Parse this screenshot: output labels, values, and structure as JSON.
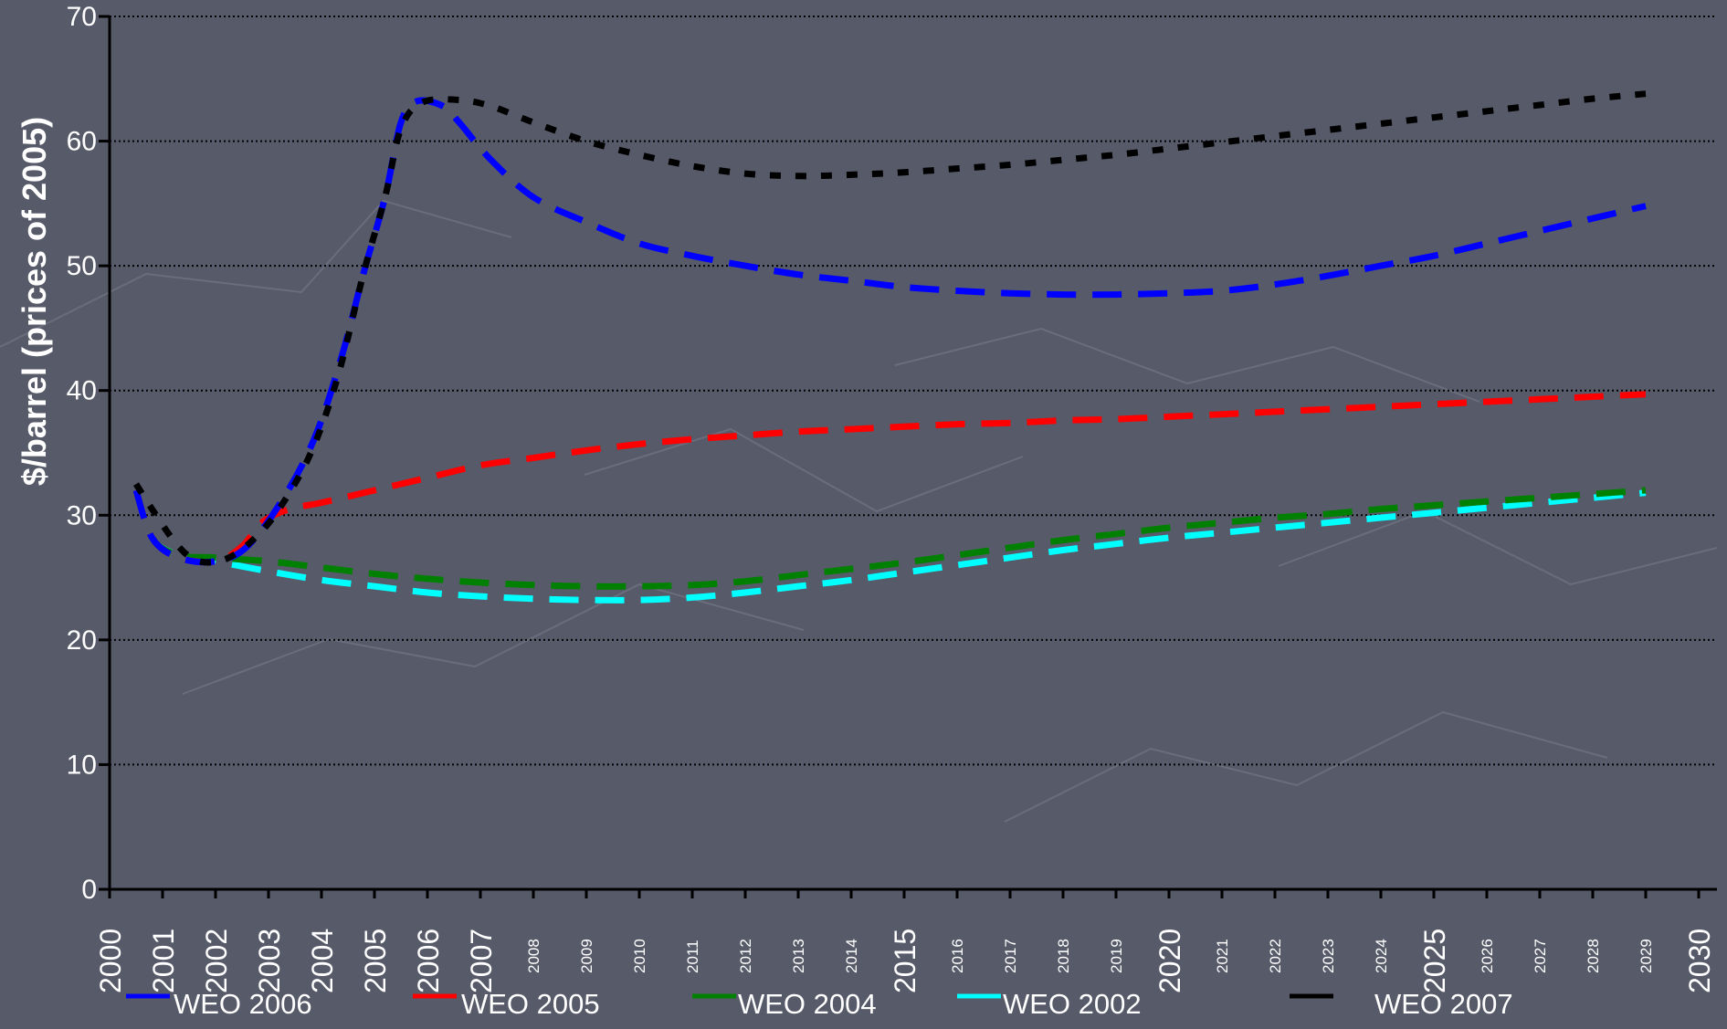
{
  "chart_data": {
    "type": "line",
    "ylabel": "$/barrel (prices of 2005)",
    "xlabel": "",
    "ylim": [
      0,
      70
    ],
    "yticks": [
      0,
      10,
      20,
      30,
      40,
      50,
      60,
      70
    ],
    "xlim": [
      2000,
      2030
    ],
    "xtick_labels": [
      {
        "label": "2000",
        "x": 2000,
        "size": "large"
      },
      {
        "label": "2001",
        "x": 2001,
        "size": "large"
      },
      {
        "label": "2002",
        "x": 2002,
        "size": "large"
      },
      {
        "label": "2003",
        "x": 2003,
        "size": "large"
      },
      {
        "label": "2004",
        "x": 2004,
        "size": "large"
      },
      {
        "label": "2005",
        "x": 2005,
        "size": "large"
      },
      {
        "label": "2006",
        "x": 2006,
        "size": "large"
      },
      {
        "label": "2007",
        "x": 2007,
        "size": "large"
      },
      {
        "label": "2008",
        "x": 2008,
        "size": "small"
      },
      {
        "label": "2009",
        "x": 2009,
        "size": "small"
      },
      {
        "label": "2010",
        "x": 2010,
        "size": "small"
      },
      {
        "label": "2011",
        "x": 2011,
        "size": "small"
      },
      {
        "label": "2012",
        "x": 2012,
        "size": "small"
      },
      {
        "label": "2013",
        "x": 2013,
        "size": "small"
      },
      {
        "label": "2014",
        "x": 2014,
        "size": "small"
      },
      {
        "label": "2015",
        "x": 2015,
        "size": "large"
      },
      {
        "label": "2016",
        "x": 2016,
        "size": "small"
      },
      {
        "label": "2017",
        "x": 2017,
        "size": "small"
      },
      {
        "label": "2018",
        "x": 2018,
        "size": "small"
      },
      {
        "label": "2019",
        "x": 2019,
        "size": "small"
      },
      {
        "label": "2020",
        "x": 2020,
        "size": "large"
      },
      {
        "label": "2021",
        "x": 2021,
        "size": "small"
      },
      {
        "label": "2022",
        "x": 2022,
        "size": "small"
      },
      {
        "label": "2023",
        "x": 2023,
        "size": "small"
      },
      {
        "label": "2024",
        "x": 2024,
        "size": "small"
      },
      {
        "label": "2025",
        "x": 2025,
        "size": "large"
      },
      {
        "label": "2026",
        "x": 2026,
        "size": "small"
      },
      {
        "label": "2027",
        "x": 2027,
        "size": "small"
      },
      {
        "label": "2028",
        "x": 2028,
        "size": "small"
      },
      {
        "label": "2029",
        "x": 2029,
        "size": "small"
      },
      {
        "label": "2030",
        "x": 2030,
        "size": "large"
      }
    ],
    "grid": true,
    "legend_position": "bottom",
    "series": [
      {
        "name": "WEO 2006",
        "color": "#0000ff",
        "style": "dashed",
        "points": [
          [
            2000.5,
            32
          ],
          [
            2000.8,
            28.2
          ],
          [
            2001.3,
            26.6
          ],
          [
            2002,
            26.3
          ],
          [
            2002.6,
            27.5
          ],
          [
            2003.3,
            31.5
          ],
          [
            2003.9,
            36.5
          ],
          [
            2004.4,
            43
          ],
          [
            2004.8,
            49.5
          ],
          [
            2005.2,
            55.5
          ],
          [
            2005.5,
            61.5
          ],
          [
            2005.8,
            63.2
          ],
          [
            2006.3,
            62.8
          ],
          [
            2006.6,
            61.5
          ],
          [
            2007.2,
            58.5
          ],
          [
            2008,
            55.5
          ],
          [
            2009,
            53.5
          ],
          [
            2010,
            51.8
          ],
          [
            2011,
            50.8
          ],
          [
            2012,
            50
          ],
          [
            2013,
            49.3
          ],
          [
            2014,
            48.8
          ],
          [
            2015,
            48.3
          ],
          [
            2016,
            48
          ],
          [
            2017,
            47.8
          ],
          [
            2018,
            47.7
          ],
          [
            2019,
            47.7
          ],
          [
            2020,
            47.8
          ],
          [
            2021,
            48
          ],
          [
            2022,
            48.5
          ],
          [
            2023,
            49.2
          ],
          [
            2024,
            50
          ],
          [
            2025,
            50.8
          ],
          [
            2026,
            51.8
          ],
          [
            2027,
            52.8
          ],
          [
            2028,
            53.8
          ],
          [
            2029,
            54.8
          ]
        ]
      },
      {
        "name": "WEO 2005",
        "color": "#ff0000",
        "style": "dashed",
        "points": [
          [
            2000.5,
            32
          ],
          [
            2000.8,
            28.2
          ],
          [
            2001.3,
            26.6
          ],
          [
            2002,
            26.3
          ],
          [
            2002.5,
            27.5
          ],
          [
            2002.9,
            29.5
          ],
          [
            2003.4,
            30.5
          ],
          [
            2004,
            31
          ],
          [
            2005,
            32
          ],
          [
            2006,
            33
          ],
          [
            2007,
            34
          ],
          [
            2008,
            34.6
          ],
          [
            2009,
            35.2
          ],
          [
            2010,
            35.7
          ],
          [
            2011,
            36.1
          ],
          [
            2012,
            36.4
          ],
          [
            2013,
            36.7
          ],
          [
            2014,
            36.9
          ],
          [
            2015,
            37.1
          ],
          [
            2016,
            37.3
          ],
          [
            2017,
            37.4
          ],
          [
            2018,
            37.6
          ],
          [
            2019,
            37.7
          ],
          [
            2020,
            37.9
          ],
          [
            2021,
            38.1
          ],
          [
            2022,
            38.3
          ],
          [
            2023,
            38.5
          ],
          [
            2024,
            38.7
          ],
          [
            2025,
            38.9
          ],
          [
            2026,
            39.1
          ],
          [
            2027,
            39.3
          ],
          [
            2028,
            39.5
          ],
          [
            2029,
            39.7
          ]
        ]
      },
      {
        "name": "WEO 2004",
        "color": "#008000",
        "style": "dashed",
        "points": [
          [
            2000.5,
            32
          ],
          [
            2000.8,
            28.2
          ],
          [
            2001.3,
            26.8
          ],
          [
            2002,
            26.6
          ],
          [
            2003,
            26.3
          ],
          [
            2004,
            25.8
          ],
          [
            2005,
            25.3
          ],
          [
            2006,
            24.9
          ],
          [
            2007,
            24.6
          ],
          [
            2008,
            24.4
          ],
          [
            2009,
            24.3
          ],
          [
            2010,
            24.3
          ],
          [
            2011,
            24.4
          ],
          [
            2012,
            24.7
          ],
          [
            2013,
            25.2
          ],
          [
            2014,
            25.7
          ],
          [
            2015,
            26.2
          ],
          [
            2016,
            26.8
          ],
          [
            2017,
            27.4
          ],
          [
            2018,
            28
          ],
          [
            2019,
            28.5
          ],
          [
            2020,
            29
          ],
          [
            2021,
            29.4
          ],
          [
            2022,
            29.8
          ],
          [
            2023,
            30.1
          ],
          [
            2024,
            30.5
          ],
          [
            2025,
            30.8
          ],
          [
            2026,
            31.1
          ],
          [
            2027,
            31.4
          ],
          [
            2028,
            31.7
          ],
          [
            2029,
            32
          ]
        ]
      },
      {
        "name": "WEO 2002",
        "color": "#00ffff",
        "style": "dashed",
        "points": [
          [
            2000.5,
            32
          ],
          [
            2000.8,
            28.2
          ],
          [
            2001.3,
            26.8
          ],
          [
            2002,
            26.3
          ],
          [
            2003,
            25.5
          ],
          [
            2004,
            24.8
          ],
          [
            2005,
            24.3
          ],
          [
            2006,
            23.8
          ],
          [
            2007,
            23.5
          ],
          [
            2008,
            23.3
          ],
          [
            2009,
            23.2
          ],
          [
            2010,
            23.2
          ],
          [
            2011,
            23.4
          ],
          [
            2012,
            23.8
          ],
          [
            2013,
            24.3
          ],
          [
            2014,
            24.8
          ],
          [
            2015,
            25.4
          ],
          [
            2016,
            26
          ],
          [
            2017,
            26.6
          ],
          [
            2018,
            27.2
          ],
          [
            2019,
            27.7
          ],
          [
            2020,
            28.2
          ],
          [
            2021,
            28.6
          ],
          [
            2022,
            29
          ],
          [
            2023,
            29.4
          ],
          [
            2024,
            29.8
          ],
          [
            2025,
            30.2
          ],
          [
            2026,
            30.6
          ],
          [
            2027,
            31
          ],
          [
            2028,
            31.4
          ],
          [
            2029,
            31.8
          ]
        ]
      },
      {
        "name": "WEO 2007",
        "color": "#000000",
        "style": "dotted",
        "points": [
          [
            2000.5,
            32.5
          ],
          [
            2000.8,
            30.5
          ],
          [
            2001.3,
            27.5
          ],
          [
            2001.7,
            26.3
          ],
          [
            2002.2,
            26.5
          ],
          [
            2002.7,
            28
          ],
          [
            2003.2,
            30.5
          ],
          [
            2003.8,
            35
          ],
          [
            2004.3,
            41
          ],
          [
            2004.8,
            49.5
          ],
          [
            2005.2,
            55.5
          ],
          [
            2005.5,
            61
          ],
          [
            2005.9,
            63.1
          ],
          [
            2006.6,
            63.3
          ],
          [
            2007.2,
            62.8
          ],
          [
            2008,
            61.5
          ],
          [
            2009,
            60
          ],
          [
            2010,
            58.9
          ],
          [
            2011,
            58
          ],
          [
            2012,
            57.4
          ],
          [
            2013,
            57.2
          ],
          [
            2014,
            57.3
          ],
          [
            2015,
            57.5
          ],
          [
            2016,
            57.8
          ],
          [
            2017,
            58.1
          ],
          [
            2018,
            58.5
          ],
          [
            2019,
            58.9
          ],
          [
            2020,
            59.4
          ],
          [
            2021,
            59.9
          ],
          [
            2022,
            60.4
          ],
          [
            2023,
            60.9
          ],
          [
            2024,
            61.4
          ],
          [
            2025,
            61.9
          ],
          [
            2026,
            62.4
          ],
          [
            2027,
            62.9
          ],
          [
            2028,
            63.4
          ],
          [
            2029,
            63.8
          ]
        ]
      }
    ],
    "legend": [
      {
        "name": "WEO 2006",
        "color": "#0000ff"
      },
      {
        "name": "WEO 2005",
        "color": "#ff0000"
      },
      {
        "name": "WEO 2004",
        "color": "#008000"
      },
      {
        "name": "WEO 2002",
        "color": "#00ffff"
      },
      {
        "name": "WEO 2007",
        "color": "#000000"
      }
    ]
  }
}
